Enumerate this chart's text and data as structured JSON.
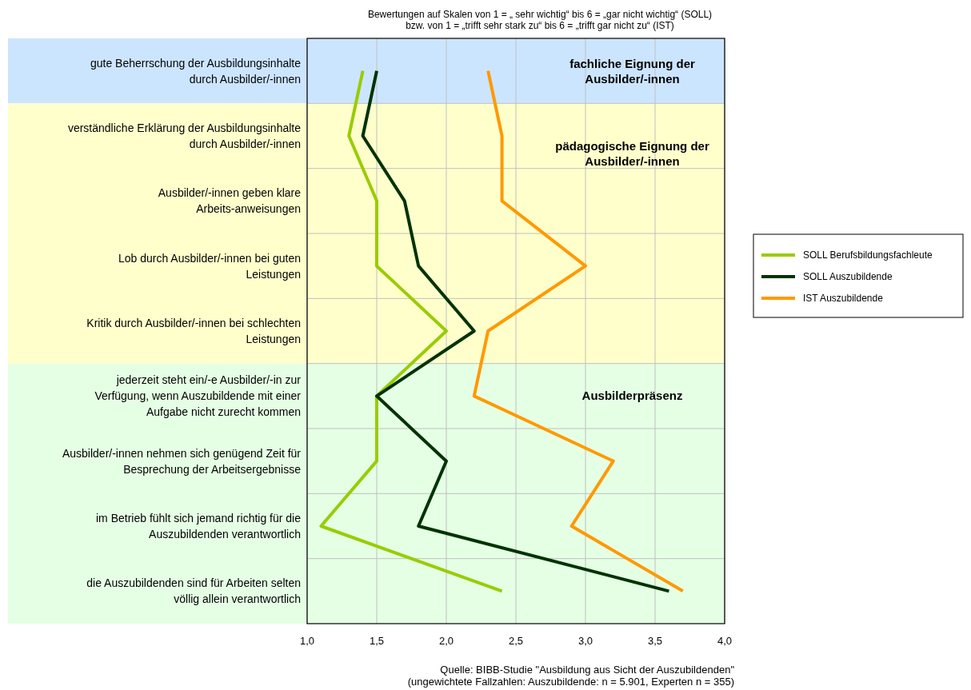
{
  "chart_data": {
    "type": "line",
    "orientation": "horizontal",
    "title": "Bewertungen auf Skalen von 1 = „ sehr wichtig“ bis 6 = „gar nicht wichtig“ (SOLL)",
    "subtitle": "bzw. von 1 = „trifft sehr stark zu“ bis 6 = „trifft gar nicht zu“ (IST)",
    "categories": [
      "gute Beherrschung der Ausbildungsinhalte durch Ausbilder/-innen",
      "verständliche Erklärung der Ausbildungsinhalte durch Ausbilder/-innen",
      "Ausbilder/-innen geben klare Arbeits-anweisungen",
      "Lob durch Ausbilder/-innen bei guten Leistungen",
      "Kritik durch Ausbilder/-innen bei schlechten Leistungen",
      "jederzeit steht ein/-e Ausbilder/-in zur Verfügung, wenn Auszubildende mit einer Aufgabe nicht zurecht kommen",
      "Ausbilder/-innen nehmen sich genügend Zeit für Besprechung der Arbeitsergebnisse",
      "im Betrieb fühlt sich jemand richtig für die Auszubildenden verantwortlich",
      "die Auszubildenden sind für Arbeiten selten völlig allein verantwortlich"
    ],
    "series": [
      {
        "name": "SOLL Berufsbildungsfachleute",
        "color": "#99cc00",
        "values": [
          1.4,
          1.3,
          1.5,
          1.5,
          2.0,
          1.5,
          1.5,
          1.1,
          2.4
        ]
      },
      {
        "name": "SOLL Auszubildende",
        "color": "#003300",
        "values": [
          1.5,
          1.4,
          1.7,
          1.8,
          2.2,
          1.5,
          2.0,
          1.8,
          3.6
        ]
      },
      {
        "name": "IST Auszubildende",
        "color": "#ff9900",
        "values": [
          2.3,
          2.4,
          2.4,
          3.0,
          2.3,
          2.2,
          3.2,
          2.9,
          3.7
        ]
      }
    ],
    "xlim": [
      1.0,
      4.0
    ],
    "xticks": [
      {
        "value": 1.0,
        "label": "1,0"
      },
      {
        "value": 1.5,
        "label": "1,5"
      },
      {
        "value": 2.0,
        "label": "2,0"
      },
      {
        "value": 2.5,
        "label": "2,5"
      },
      {
        "value": 3.0,
        "label": "3,0"
      },
      {
        "value": 3.5,
        "label": "3,5"
      },
      {
        "value": 4.0,
        "label": "4,0"
      }
    ],
    "bands": [
      {
        "axis": "y",
        "from": "gute Beherrschung der Ausbildungsinhalte durch Ausbilder/-innen",
        "to": "gute Beherrschung der Ausbildungsinhalte durch Ausbilder/-innen",
        "label": "fachliche Eignung der Ausbilder/-innen",
        "color": "#cce5ff"
      },
      {
        "axis": "y",
        "from": "verständliche Erklärung der Ausbildungsinhalte durch Ausbilder/-innen",
        "to": "Kritik durch Ausbilder/-innen bei schlechten Leistungen",
        "label": "pädagogische Eignung der Ausbilder/-innen",
        "color": "#ffffcc"
      },
      {
        "axis": "y",
        "from": "jederzeit steht ein/-e Ausbilder/-in zur Verfügung, wenn Auszubildende mit einer Aufgabe nicht zurecht kommen",
        "to": "die Auszubildenden sind für Arbeiten selten völlig allein verantwortlich",
        "label": "Ausbilderpräsenz",
        "color": "#e5ffe5"
      }
    ],
    "annotations": [
      "Quelle:  BIBB-Studie \"Ausbildung aus Sicht der Auszubildenden\"",
      "(ungewichtete Fallzahlen: Auszubildende: n = 5.901, Experten n = 355)"
    ],
    "grid": true,
    "legend": "right",
    "line_style": "solid",
    "marker": "none"
  }
}
